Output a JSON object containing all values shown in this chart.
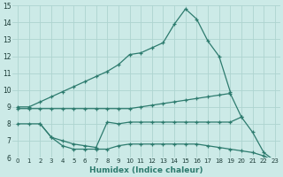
{
  "xlabel": "Humidex (Indice chaleur)",
  "xlim": [
    -0.5,
    23.5
  ],
  "ylim": [
    6,
    15
  ],
  "yticks": [
    6,
    7,
    8,
    9,
    10,
    11,
    12,
    13,
    14,
    15
  ],
  "xticks": [
    0,
    1,
    2,
    3,
    4,
    5,
    6,
    7,
    8,
    9,
    10,
    11,
    12,
    13,
    14,
    15,
    16,
    17,
    18,
    19,
    20,
    21,
    22,
    23
  ],
  "background_color": "#cceae7",
  "grid_color": "#aed4d0",
  "line_color": "#2d7b6e",
  "lines": [
    {
      "x": [
        0,
        1,
        2,
        3,
        4,
        5,
        6,
        7,
        8,
        9,
        10,
        11,
        12,
        13,
        14,
        15,
        16,
        17,
        18,
        19
      ],
      "y": [
        9.0,
        9.0,
        9.3,
        9.6,
        9.9,
        10.2,
        10.5,
        10.8,
        11.1,
        11.5,
        12.1,
        12.2,
        12.5,
        12.8,
        13.9,
        14.8,
        14.2,
        12.9,
        12.0,
        9.9
      ]
    },
    {
      "x": [
        0,
        1,
        2,
        3,
        4,
        5,
        6,
        7,
        8,
        9,
        10,
        11,
        12,
        13,
        14,
        15,
        16,
        17,
        18,
        19,
        20
      ],
      "y": [
        8.9,
        8.9,
        8.9,
        8.9,
        8.9,
        8.9,
        8.9,
        8.9,
        8.9,
        8.9,
        8.9,
        9.0,
        9.1,
        9.2,
        9.3,
        9.4,
        9.5,
        9.6,
        9.7,
        9.8,
        8.4
      ]
    },
    {
      "x": [
        0,
        1,
        2,
        3,
        4,
        5,
        6,
        7,
        8,
        9,
        10,
        11,
        12,
        13,
        14,
        15,
        16,
        17,
        18,
        19,
        20,
        21,
        22,
        23
      ],
      "y": [
        8.0,
        8.0,
        8.0,
        7.2,
        7.0,
        6.8,
        6.7,
        6.6,
        8.1,
        8.0,
        8.1,
        8.1,
        8.1,
        8.1,
        8.1,
        8.1,
        8.1,
        8.1,
        8.1,
        8.1,
        8.4,
        7.5,
        6.3,
        5.8
      ]
    },
    {
      "x": [
        2,
        3,
        4,
        5,
        6,
        7,
        8,
        9,
        10,
        11,
        12,
        13,
        14,
        15,
        16,
        17,
        18,
        19,
        20,
        21,
        22,
        23
      ],
      "y": [
        8.0,
        7.2,
        6.7,
        6.5,
        6.5,
        6.5,
        6.5,
        6.7,
        6.8,
        6.8,
        6.8,
        6.8,
        6.8,
        6.8,
        6.8,
        6.7,
        6.6,
        6.5,
        6.4,
        6.3,
        6.1,
        5.8
      ]
    }
  ]
}
